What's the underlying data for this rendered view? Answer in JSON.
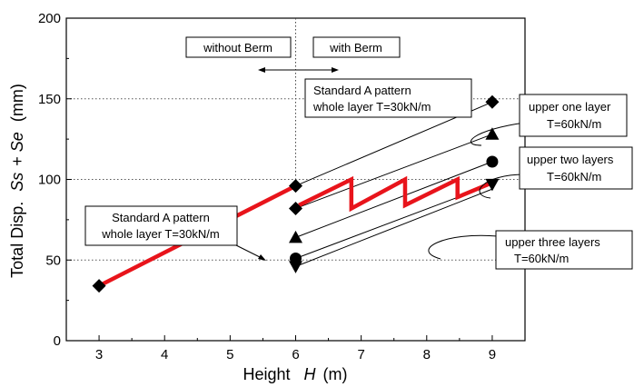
{
  "chart_data": {
    "type": "line",
    "xlabel": "Height",
    "xlabel_symbol": "H",
    "xlabel_unit": "(m)",
    "ylabel": "Total Disp.",
    "ylabel_symbol_1": "Ss",
    "ylabel_plus": "+",
    "ylabel_symbol_2": "Se",
    "ylabel_unit": "(mm)",
    "xlim": [
      2.5,
      9.5
    ],
    "ylim": [
      0,
      200
    ],
    "xticks": [
      "3",
      "4",
      "5",
      "6",
      "7",
      "8",
      "9"
    ],
    "yticks": [
      "0",
      "50",
      "100",
      "150",
      "200"
    ],
    "grid": "horizontal dotted at 50, 100, 150",
    "berm_divider_x": 6.0,
    "series": [
      {
        "style": "thick-red",
        "segments": [
          [
            [
              3.0,
              34
            ],
            [
              6.0,
              96
            ]
          ],
          [
            [
              6.05,
              84
            ],
            [
              6.85,
              100
            ],
            [
              6.85,
              82
            ],
            [
              7.67,
              100
            ],
            [
              7.67,
              84
            ],
            [
              8.47,
              100
            ],
            [
              8.47,
              89
            ],
            [
              9.0,
              98
            ]
          ]
        ]
      },
      {
        "style": "thin-black",
        "segments": [
          [
            [
              6.0,
              96
            ],
            [
              9.0,
              148
            ]
          ]
        ]
      },
      {
        "style": "thin-black",
        "segments": [
          [
            [
              6.0,
              82
            ],
            [
              9.0,
              128
            ]
          ]
        ]
      },
      {
        "style": "thin-black",
        "segments": [
          [
            [
              6.0,
              64
            ],
            [
              9.0,
              111
            ]
          ]
        ]
      },
      {
        "style": "thin-black",
        "segments": [
          [
            [
              6.0,
              51
            ],
            [
              9.0,
              97
            ]
          ]
        ]
      },
      {
        "style": "thin-black",
        "segments": [
          [
            [
              6.0,
              46
            ],
            [
              9.0,
              94
            ]
          ]
        ]
      }
    ],
    "points": [
      {
        "marker": "diamond",
        "x": 3.0,
        "y": 34
      },
      {
        "marker": "diamond",
        "x": 6.0,
        "y": 96
      },
      {
        "marker": "diamond",
        "x": 6.0,
        "y": 82
      },
      {
        "marker": "triangle-up",
        "x": 6.0,
        "y": 64
      },
      {
        "marker": "circle",
        "x": 6.0,
        "y": 51
      },
      {
        "marker": "triangle-down",
        "x": 6.0,
        "y": 46
      },
      {
        "marker": "diamond",
        "x": 9.0,
        "y": 148
      },
      {
        "marker": "triangle-up",
        "x": 9.0,
        "y": 128
      },
      {
        "marker": "circle",
        "x": 9.0,
        "y": 111
      },
      {
        "marker": "triangle-down",
        "x": 9.0,
        "y": 97
      }
    ],
    "annotations": {
      "without_berm": "without Berm",
      "with_berm": "with Berm",
      "std_right_line1": "Standard A pattern",
      "std_right_line2": "whole layer T=30kN/m",
      "std_left_line1": "Standard A pattern",
      "std_left_line2": "whole layer T=30kN/m",
      "upper_one_line1": "upper one layer",
      "upper_one_line2": "T=60kN/m",
      "upper_two_line1": "upper two layers",
      "upper_two_line2": "T=60kN/m",
      "upper_three_line1": "upper three layers",
      "upper_three_line2": "T=60kN/m"
    },
    "colors": {
      "highlight": "#e8141b",
      "line": "#000000",
      "grid": "#555555"
    }
  }
}
